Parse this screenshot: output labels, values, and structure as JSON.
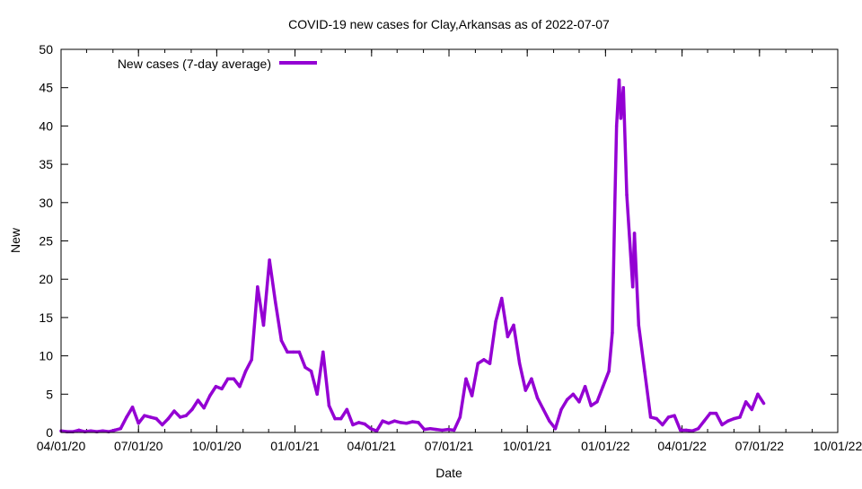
{
  "chart_data": {
    "type": "line",
    "title": "COVID-19 new cases for Clay,Arkansas as of 2022-07-07",
    "xlabel": "Date",
    "ylabel": "New",
    "xlim": [
      "2020-04-01",
      "2022-10-01"
    ],
    "ylim": [
      0,
      50
    ],
    "y_ticks": [
      0,
      5,
      10,
      15,
      20,
      25,
      30,
      35,
      40,
      45,
      50
    ],
    "x_ticks": [
      {
        "date": "2020-04-01",
        "label": "04/01/20"
      },
      {
        "date": "2020-07-01",
        "label": "07/01/20"
      },
      {
        "date": "2020-10-01",
        "label": "10/01/20"
      },
      {
        "date": "2021-01-01",
        "label": "01/01/21"
      },
      {
        "date": "2021-04-01",
        "label": "04/01/21"
      },
      {
        "date": "2021-07-01",
        "label": "07/01/21"
      },
      {
        "date": "2021-10-01",
        "label": "10/01/21"
      },
      {
        "date": "2022-01-01",
        "label": "01/01/22"
      },
      {
        "date": "2022-04-01",
        "label": "04/01/22"
      },
      {
        "date": "2022-07-01",
        "label": "07/01/22"
      },
      {
        "date": "2022-10-01",
        "label": "10/01/22"
      }
    ],
    "grid": false,
    "legend_position": "top-left",
    "series": [
      {
        "name": "New cases (7-day average)",
        "color": "#9400d3",
        "x": [
          "2020-04-01",
          "2020-04-08",
          "2020-04-15",
          "2020-04-22",
          "2020-04-29",
          "2020-05-06",
          "2020-05-13",
          "2020-05-20",
          "2020-05-27",
          "2020-06-03",
          "2020-06-10",
          "2020-06-17",
          "2020-06-24",
          "2020-07-01",
          "2020-07-08",
          "2020-07-15",
          "2020-07-22",
          "2020-07-29",
          "2020-08-05",
          "2020-08-12",
          "2020-08-19",
          "2020-08-26",
          "2020-09-02",
          "2020-09-09",
          "2020-09-16",
          "2020-09-23",
          "2020-09-30",
          "2020-10-07",
          "2020-10-14",
          "2020-10-21",
          "2020-10-28",
          "2020-11-04",
          "2020-11-11",
          "2020-11-18",
          "2020-11-25",
          "2020-12-02",
          "2020-12-09",
          "2020-12-16",
          "2020-12-23",
          "2020-12-30",
          "2021-01-06",
          "2021-01-13",
          "2021-01-20",
          "2021-01-27",
          "2021-02-03",
          "2021-02-10",
          "2021-02-17",
          "2021-02-24",
          "2021-03-03",
          "2021-03-10",
          "2021-03-17",
          "2021-03-24",
          "2021-03-31",
          "2021-04-07",
          "2021-04-14",
          "2021-04-21",
          "2021-04-28",
          "2021-05-05",
          "2021-05-12",
          "2021-05-19",
          "2021-05-26",
          "2021-06-02",
          "2021-06-09",
          "2021-06-16",
          "2021-06-23",
          "2021-06-30",
          "2021-07-07",
          "2021-07-14",
          "2021-07-21",
          "2021-07-28",
          "2021-08-04",
          "2021-08-11",
          "2021-08-18",
          "2021-08-25",
          "2021-09-01",
          "2021-09-08",
          "2021-09-15",
          "2021-09-22",
          "2021-09-29",
          "2021-10-06",
          "2021-10-13",
          "2021-10-20",
          "2021-10-27",
          "2021-11-03",
          "2021-11-10",
          "2021-11-17",
          "2021-11-24",
          "2021-12-01",
          "2021-12-08",
          "2021-12-15",
          "2021-12-22",
          "2021-12-29",
          "2022-01-05",
          "2022-01-09",
          "2022-01-12",
          "2022-01-14",
          "2022-01-17",
          "2022-01-19",
          "2022-01-22",
          "2022-01-26",
          "2022-02-02",
          "2022-02-04",
          "2022-02-09",
          "2022-02-16",
          "2022-02-23",
          "2022-03-02",
          "2022-03-09",
          "2022-03-16",
          "2022-03-23",
          "2022-03-30",
          "2022-04-06",
          "2022-04-13",
          "2022-04-20",
          "2022-04-27",
          "2022-05-04",
          "2022-05-11",
          "2022-05-18",
          "2022-05-25",
          "2022-06-01",
          "2022-06-08",
          "2022-06-15",
          "2022-06-22",
          "2022-06-29",
          "2022-07-06"
        ],
        "y": [
          0.2,
          0.1,
          0.1,
          0.3,
          0.1,
          0.2,
          0.1,
          0.2,
          0.1,
          0.3,
          0.5,
          2,
          3.3,
          1.2,
          2.2,
          2,
          1.8,
          1,
          1.8,
          2.8,
          2,
          2.2,
          3,
          4.2,
          3.2,
          4.8,
          6,
          5.7,
          7,
          7,
          6,
          8,
          9.5,
          19,
          14,
          22.5,
          17,
          12,
          10.5,
          10.5,
          10.5,
          8.5,
          8,
          5,
          10.5,
          3.5,
          1.8,
          1.8,
          3,
          1,
          1.3,
          1.1,
          0.5,
          0.2,
          1.5,
          1.2,
          1.5,
          1.3,
          1.2,
          1.4,
          1.3,
          0.4,
          0.5,
          0.4,
          0.3,
          0.4,
          0.3,
          2,
          7,
          4.8,
          9,
          9.5,
          9,
          14.5,
          17.5,
          12.5,
          14,
          9,
          5.5,
          7,
          4.5,
          3,
          1.5,
          0.5,
          3,
          4.3,
          5,
          4,
          6,
          3.5,
          4,
          6,
          8,
          13,
          30,
          40,
          46,
          41,
          45,
          31,
          19,
          26,
          14,
          8,
          2,
          1.8,
          1,
          2,
          2.2,
          0.3,
          0.3,
          0.2,
          0.5,
          1.5,
          2.5,
          2.5,
          1,
          1.5,
          1.8,
          2,
          4,
          3,
          5,
          3.8
        ]
      }
    ]
  }
}
